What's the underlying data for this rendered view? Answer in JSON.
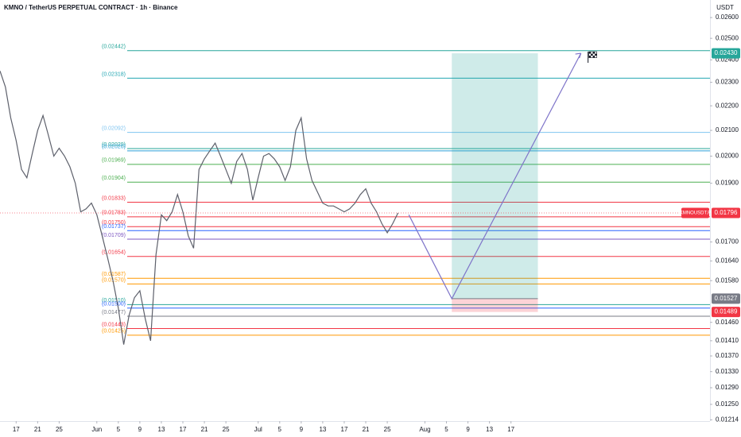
{
  "chart_data": {
    "type": "line",
    "title": "KMNO / TetherUS PERPETUAL CONTRACT · 1h · Binance",
    "currency": "USDT",
    "symbol_label": "KMNOUSDT.P",
    "log_scale": true,
    "xlim": [
      "05-14",
      "09-23"
    ],
    "ylim": [
      0.01211,
      0.02688
    ],
    "xticks": [
      {
        "value": "05-17",
        "label": "17"
      },
      {
        "value": "05-21",
        "label": "21"
      },
      {
        "value": "05-25",
        "label": "25"
      },
      {
        "value": "06-01",
        "label": "Jun"
      },
      {
        "value": "06-05",
        "label": "5"
      },
      {
        "value": "06-09",
        "label": "9"
      },
      {
        "value": "06-13",
        "label": "13"
      },
      {
        "value": "06-17",
        "label": "17"
      },
      {
        "value": "06-21",
        "label": "21"
      },
      {
        "value": "06-25",
        "label": "25"
      },
      {
        "value": "07-01",
        "label": "Jul"
      },
      {
        "value": "07-05",
        "label": "5"
      },
      {
        "value": "07-09",
        "label": "9"
      },
      {
        "value": "07-13",
        "label": "13"
      },
      {
        "value": "07-17",
        "label": "17"
      },
      {
        "value": "07-21",
        "label": "21"
      },
      {
        "value": "07-25",
        "label": "25"
      },
      {
        "value": "08-01",
        "label": "Aug"
      },
      {
        "value": "08-05",
        "label": "5"
      },
      {
        "value": "08-09",
        "label": "9"
      },
      {
        "value": "08-13",
        "label": "13"
      },
      {
        "value": "08-17",
        "label": "17"
      }
    ],
    "yticks": [
      {
        "value": 0.026,
        "label": "0.02600"
      },
      {
        "value": 0.025,
        "label": "0.02500"
      },
      {
        "value": 0.024,
        "label": "0.02400"
      },
      {
        "value": 0.023,
        "label": "0.02300"
      },
      {
        "value": 0.022,
        "label": "0.02200"
      },
      {
        "value": 0.021,
        "label": "0.02100"
      },
      {
        "value": 0.02,
        "label": "0.02000"
      },
      {
        "value": 0.019,
        "label": "0.01900"
      },
      {
        "value": 0.017,
        "label": "0.01700"
      },
      {
        "value": 0.0164,
        "label": "0.01640"
      },
      {
        "value": 0.0158,
        "label": "0.01580"
      },
      {
        "value": 0.0146,
        "label": "0.01460"
      },
      {
        "value": 0.0141,
        "label": "0.01410"
      },
      {
        "value": 0.0137,
        "label": "0.01370"
      },
      {
        "value": 0.0133,
        "label": "0.01330"
      },
      {
        "value": 0.0129,
        "label": "0.01290"
      },
      {
        "value": 0.0125,
        "label": "0.01250"
      },
      0.01214
    ],
    "series": [
      {
        "name": "KMNOUSDT.P",
        "color": "#5d606b",
        "x": [
          "05-14",
          "05-15",
          "05-16",
          "05-17",
          "05-18",
          "05-19",
          "05-20",
          "05-21",
          "05-22",
          "05-23",
          "05-24",
          "05-25",
          "05-26",
          "05-27",
          "05-28",
          "05-29",
          "05-30",
          "05-31",
          "06-01",
          "06-02",
          "06-03",
          "06-04",
          "06-05",
          "06-06",
          "06-07",
          "06-08",
          "06-09",
          "06-10",
          "06-11",
          "06-12",
          "06-13",
          "06-14",
          "06-15",
          "06-16",
          "06-17",
          "06-18",
          "06-19",
          "06-20",
          "06-21",
          "06-22",
          "06-23",
          "06-24",
          "06-25",
          "06-26",
          "06-27",
          "06-28",
          "06-29",
          "06-30",
          "07-01",
          "07-02",
          "07-03",
          "07-04",
          "07-05",
          "07-06",
          "07-07",
          "07-08",
          "07-09",
          "07-10",
          "07-11",
          "07-12",
          "07-13",
          "07-14",
          "07-15",
          "07-16",
          "07-17",
          "07-18",
          "07-19",
          "07-20",
          "07-21",
          "07-22",
          "07-23",
          "07-24",
          "07-25",
          "07-26",
          "07-27"
        ],
        "values": [
          0.0235,
          0.0228,
          0.0215,
          0.0206,
          0.0195,
          0.0192,
          0.0201,
          0.021,
          0.0216,
          0.0208,
          0.02,
          0.0203,
          0.02,
          0.0196,
          0.019,
          0.018,
          0.0181,
          0.0183,
          0.0179,
          0.0172,
          0.0165,
          0.0158,
          0.015,
          0.014,
          0.0148,
          0.0153,
          0.0155,
          0.0147,
          0.0141,
          0.0166,
          0.0179,
          0.0177,
          0.018,
          0.0186,
          0.018,
          0.0172,
          0.0168,
          0.0195,
          0.0199,
          0.0202,
          0.0205,
          0.02,
          0.0195,
          0.019,
          0.0198,
          0.0201,
          0.0195,
          0.0184,
          0.0192,
          0.02,
          0.0201,
          0.0199,
          0.0196,
          0.0191,
          0.0196,
          0.021,
          0.0215,
          0.0199,
          0.0191,
          0.0187,
          0.0183,
          0.0182,
          0.0182,
          0.0181,
          0.018,
          0.0181,
          0.0183,
          0.0186,
          0.0188,
          0.0183,
          0.018,
          0.0176,
          0.0173,
          0.0176,
          0.01796
        ]
      }
    ],
    "levels": [
      {
        "value": 0.02442,
        "label": "(0.02442)",
        "color": "#26a69a"
      },
      {
        "value": 0.02318,
        "label": "(0.02318)",
        "color": "#22a6b3"
      },
      {
        "value": 0.02092,
        "label": "(0.02092)",
        "color": "#81c5f0"
      },
      {
        "value": 0.02029,
        "label": "(0.02029)",
        "color": "#26a69a"
      },
      {
        "value": 0.0202,
        "label": "(0.02020)",
        "color": "#2b9fd8"
      },
      {
        "value": 0.01969,
        "label": "(0.01969)",
        "color": "#4caf50"
      },
      {
        "value": 0.01904,
        "label": "(0.01904)",
        "color": "#4caf50"
      },
      {
        "value": 0.01833,
        "label": "(0.01833)",
        "color": "#f23645"
      },
      {
        "value": 0.01783,
        "label": "(0.01783)",
        "color": "#f23645"
      },
      {
        "value": 0.0175,
        "label": "(0.01750)",
        "color": "#f23645"
      },
      {
        "value": 0.01737,
        "label": "(0.01737)",
        "color": "#2962ff"
      },
      {
        "value": 0.01709,
        "label": "(0.01709)",
        "color": "#7e57c2"
      },
      {
        "value": 0.01654,
        "label": "(0.01654)",
        "color": "#f23645"
      },
      {
        "value": 0.01587,
        "label": "(0.01587)",
        "color": "#ff9800"
      },
      {
        "value": 0.0157,
        "label": "(0.01570)",
        "color": "#ff9800"
      },
      {
        "value": 0.0151,
        "label": "(0.01510)",
        "color": "#26a69a"
      },
      {
        "value": 0.015,
        "label": "(0.01500)",
        "color": "#2962ff"
      },
      {
        "value": 0.01477,
        "label": "(0.01477)",
        "color": "#787b86"
      },
      {
        "value": 0.01443,
        "label": "(0.01443)",
        "color": "#f23645"
      },
      {
        "value": 0.01425,
        "label": "(0.01425)",
        "color": "#ff9800"
      }
    ],
    "position": {
      "start": "08-06",
      "end": "08-22",
      "target": {
        "value": 0.0243,
        "label": "0.02430"
      },
      "entry": 0.01527,
      "stop": 0.01489,
      "target_color": "#26a69a",
      "entry_color": "#787b86",
      "stop_color": "#f23645"
    },
    "projection": {
      "x": [
        "07-29",
        "08-06",
        "08-30"
      ],
      "values": [
        0.0179,
        0.01527,
        0.0243
      ],
      "color": "#7e74c9"
    },
    "last_price_color": "#f23645"
  }
}
